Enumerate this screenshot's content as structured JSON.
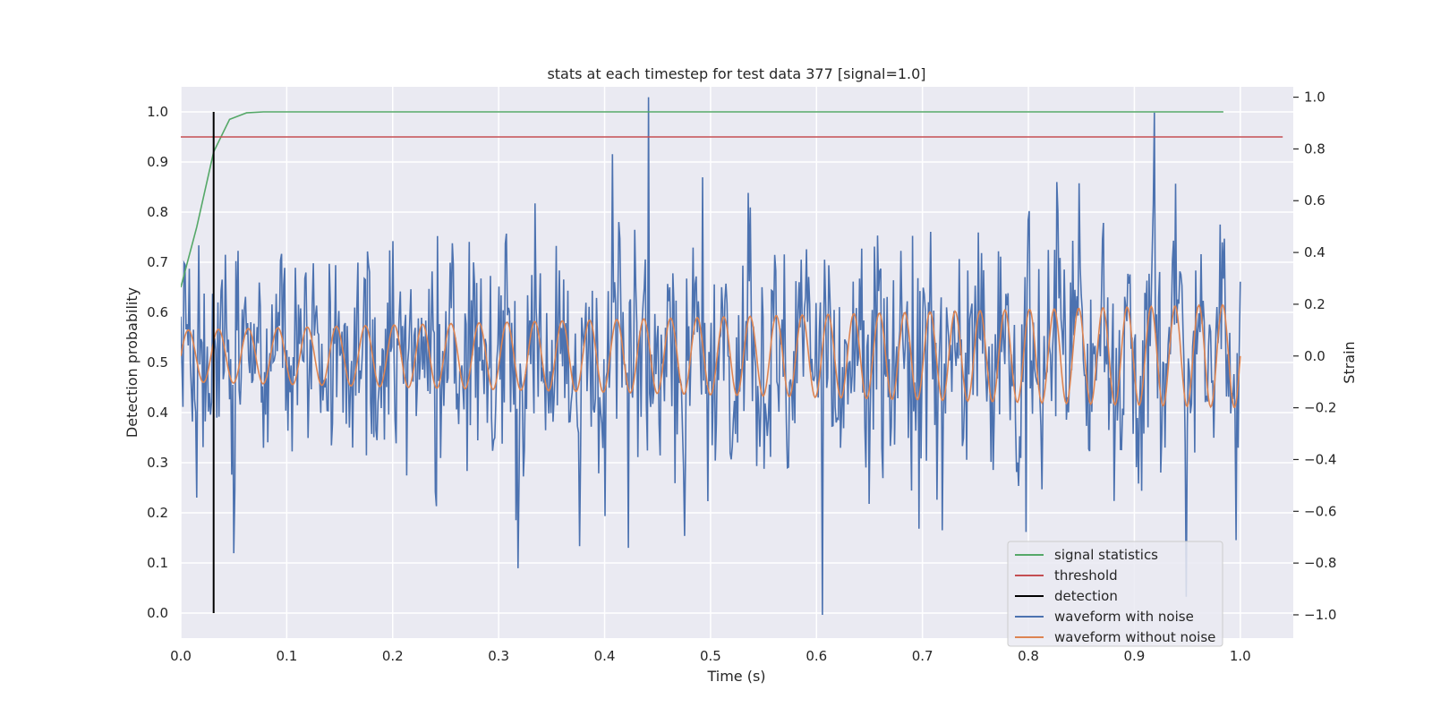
{
  "chart_data": {
    "type": "line",
    "title": "stats at each timestep for test data 377 [signal=1.0]",
    "xlabel": "Time (s)",
    "ylabel_left": "Detection probability",
    "ylabel_right": "Strain",
    "xlim": [
      0.0,
      1.05
    ],
    "ylim_left": [
      -0.05,
      1.05
    ],
    "ylim_right": [
      -1.09,
      1.04
    ],
    "x_ticks": [
      "0.0",
      "0.1",
      "0.2",
      "0.3",
      "0.4",
      "0.5",
      "0.6",
      "0.7",
      "0.8",
      "0.9",
      "1.0"
    ],
    "y_ticks_left": [
      "0.0",
      "0.1",
      "0.2",
      "0.3",
      "0.4",
      "0.5",
      "0.6",
      "0.7",
      "0.8",
      "0.9",
      "1.0"
    ],
    "y_ticks_right": [
      "−1.0",
      "−0.8",
      "−0.6",
      "−0.4",
      "−0.2",
      "0.0",
      "0.2",
      "0.4",
      "0.6",
      "0.8",
      "1.0"
    ],
    "grid": true,
    "legend_position": "lower-right",
    "legend": [
      {
        "label": "signal statistics",
        "color": "#55a868"
      },
      {
        "label": "threshold",
        "color": "#c44e52"
      },
      {
        "label": "detection",
        "color": "#000000"
      },
      {
        "label": "waveform with noise",
        "color": "#4c72b0"
      },
      {
        "label": "waveform without noise",
        "color": "#dd8452"
      }
    ],
    "series": [
      {
        "name": "signal statistics",
        "axis": "left",
        "color": "#55a868",
        "x": [
          0.0,
          0.015,
          0.031,
          0.046,
          0.062,
          0.078,
          0.1,
          0.3,
          0.5,
          0.7,
          0.9,
          0.984
        ],
        "y": [
          0.65,
          0.77,
          0.92,
          0.985,
          0.998,
          1.0,
          1.0,
          1.0,
          1.0,
          1.0,
          1.0,
          1.0
        ]
      },
      {
        "name": "threshold",
        "axis": "left",
        "color": "#c44e52",
        "x": [
          0.0,
          1.04
        ],
        "y": [
          0.95,
          0.95
        ]
      },
      {
        "name": "detection",
        "axis": "left",
        "color": "#000000",
        "x": [
          0.031,
          0.031
        ],
        "y": [
          0.0,
          1.0
        ]
      },
      {
        "name": "waveform with noise",
        "axis": "right",
        "color": "#4c72b0",
        "x_range": [
          0.0,
          1.0
        ],
        "points": 1000,
        "noise_std": 0.22,
        "min": -1.0,
        "max": 1.0,
        "extremes": [
          {
            "x": 0.441,
            "y": 1.0
          },
          {
            "x": 0.919,
            "y": 0.94
          },
          {
            "x": 0.606,
            "y": -1.0
          },
          {
            "x": 0.949,
            "y": -0.93
          },
          {
            "x": 0.318,
            "y": -0.82
          }
        ]
      },
      {
        "name": "waveform without noise",
        "axis": "right",
        "color": "#dd8452",
        "x_range": [
          0.0,
          1.0
        ],
        "points": 1000,
        "frequency_start_hz": 35,
        "frequency_end_hz": 45,
        "amplitude_start": 0.1,
        "amplitude_end": 0.2
      }
    ]
  }
}
